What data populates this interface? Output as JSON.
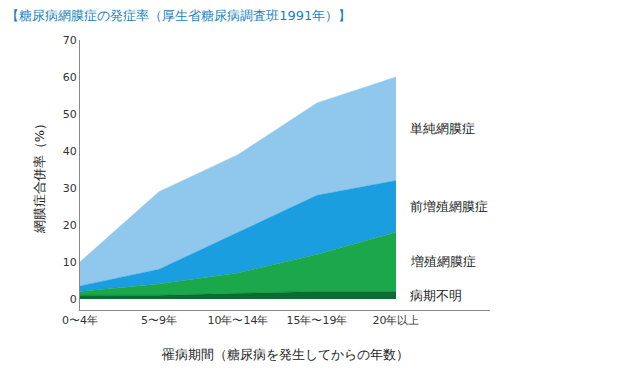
{
  "chart_data": {
    "type": "area",
    "title": "【糖尿病網膜症の発症率（厚生省糖尿病調査班1991年）】",
    "x_label": "罹病期間（糖尿病を発生してからの年数）",
    "y_label": "網膜症合併率（%）",
    "categories": [
      "0〜4年",
      "5〜9年",
      "10年〜14年",
      "15年〜19年",
      "20年以上"
    ],
    "stacked": true,
    "legend": false,
    "grid": false,
    "ylim": [
      -3,
      70
    ],
    "yticks": [
      0,
      10,
      20,
      30,
      40,
      50,
      60,
      70
    ],
    "series": [
      {
        "name": "病期不明",
        "color": "#0b6b30",
        "values": [
          1,
          1,
          1.5,
          2,
          2
        ]
      },
      {
        "name": "増殖網膜症",
        "color": "#1aa84a",
        "values": [
          1,
          3,
          5.5,
          10,
          16
        ]
      },
      {
        "name": "前増殖網膜症",
        "color": "#1a9ee0",
        "values": [
          1.5,
          4,
          11,
          16,
          14
        ]
      },
      {
        "name": "単純網膜症",
        "color": "#8fc8ec",
        "values": [
          6.5,
          21,
          21,
          25,
          28
        ]
      }
    ]
  }
}
